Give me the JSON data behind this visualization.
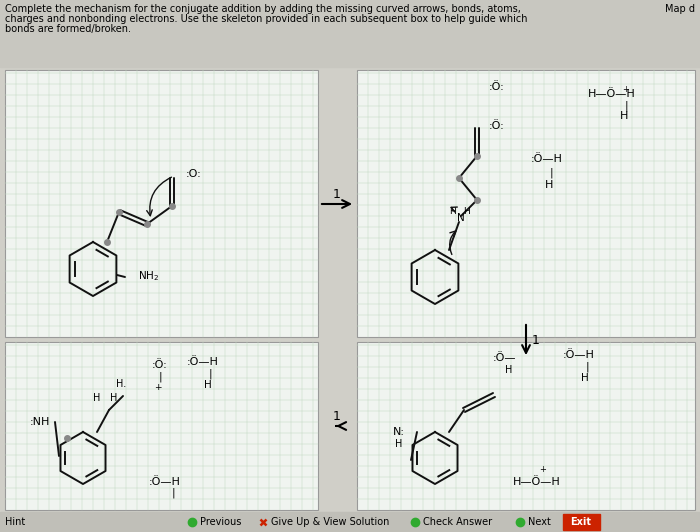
{
  "bg_color": "#d8d8d0",
  "header_bg": "#c8c8c0",
  "grid_color": "#b8ceb8",
  "panel_bg": "#ffffff",
  "bond_color": "#111111",
  "dot_color": "#888888",
  "header_text_line1": "Complete the mechanism for the conjugate addition by adding the missing curved arrows, bonds, atoms,",
  "header_text_line1b": " Map d",
  "header_text_line2": "charges and nonbonding electrons. Use the skeleton provided in each subsequent box to help guide which",
  "header_text_line3": "bonds are formed/broken.",
  "fig_width": 7.0,
  "fig_height": 5.32,
  "dpi": 100
}
